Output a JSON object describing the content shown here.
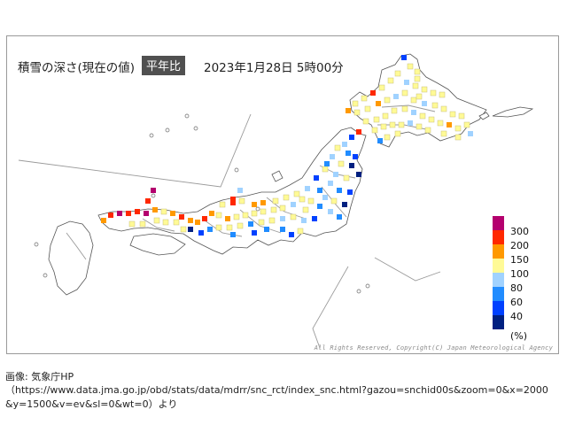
{
  "map": {
    "title": "積雪の深さ(現在の値)",
    "badge": "平年比",
    "datetime": "2023年1月28日 5時00分",
    "copyright": "All Rights Reserved, Copyright(C) Japan Meteorological Agency",
    "legend_unit": "(%)",
    "legend": [
      {
        "label": "300",
        "color": "#b4006e"
      },
      {
        "label": "200",
        "color": "#ff2800"
      },
      {
        "label": "150",
        "color": "#ff9900"
      },
      {
        "label": "100",
        "color": "#fffa96"
      },
      {
        "label": "80",
        "color": "#a0d2ff"
      },
      {
        "label": "60",
        "color": "#218cff"
      },
      {
        "label": "40",
        "color": "#0041ff"
      },
      {
        "label": "",
        "color": "#002080"
      }
    ]
  },
  "source": {
    "label": "画像: 気象庁HP",
    "url": "（https://www.data.jma.go.jp/obd/stats/data/mdrr/snc_rct/index_snc.html?gazou=snchid00s&zoom=0&x=2000&y=1500&v=ev&sl=0&wt=0）より"
  }
}
